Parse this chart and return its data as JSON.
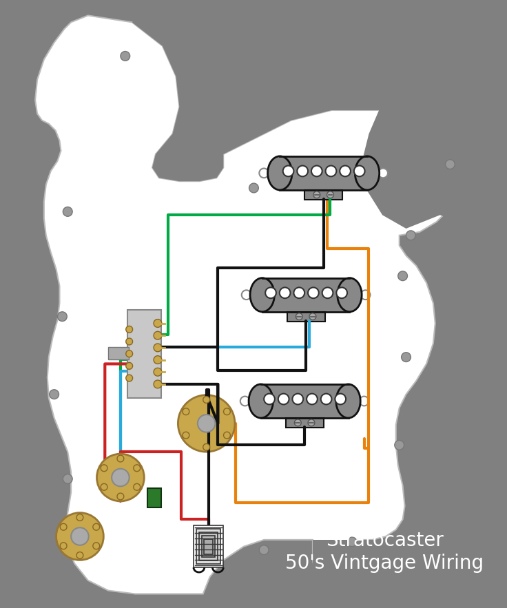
{
  "bg_color": "#808080",
  "pickguard_color": "#ffffff",
  "pickup_body_color": "#888888",
  "screw_color": "#999999",
  "pot_color": "#c8a84b",
  "pot_center": "#aaaaaa",
  "wire_colors": {
    "green": "#00aa44",
    "orange": "#e8820c",
    "black": "#111111",
    "blue": "#29aadd",
    "red": "#cc2222"
  },
  "title_text": "Stratocaster\n50's Vintgage Wiring",
  "title_color": "#ffffff",
  "title_fontsize": 20
}
